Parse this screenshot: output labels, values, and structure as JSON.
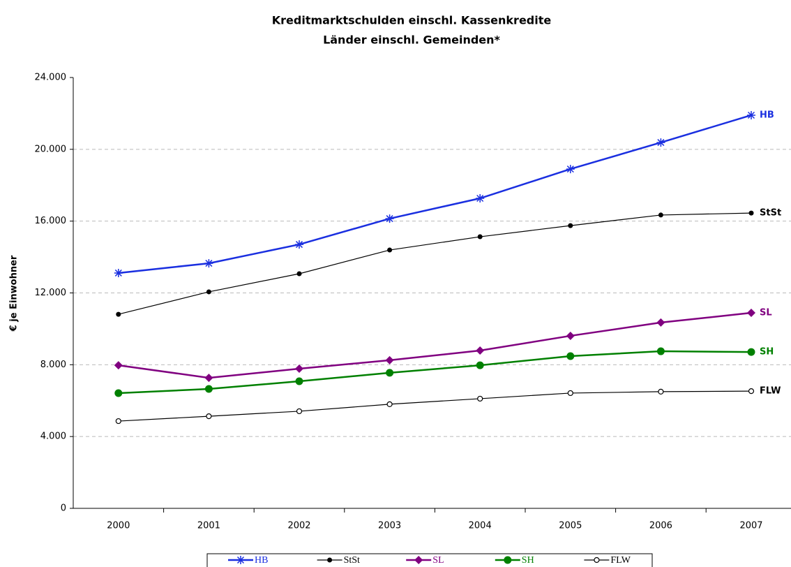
{
  "chart_data": {
    "type": "line",
    "title": "Kreditmarktschulden einschl. Kassenkredite",
    "subtitle": "Länder einschl. Gemeinden*",
    "y_label": "€ je Einwohner",
    "categories": [
      "2000",
      "2001",
      "2002",
      "2003",
      "2004",
      "2005",
      "2006",
      "2007"
    ],
    "series": [
      {
        "name": "HB",
        "color": "#1a2fe0",
        "marker": "star",
        "values": [
          13110,
          13650,
          14700,
          16140,
          17270,
          18900,
          20380,
          21900
        ]
      },
      {
        "name": "StSt",
        "color": "#000000",
        "marker": "dot",
        "values": [
          10810,
          12060,
          13070,
          14390,
          15130,
          15750,
          16340,
          16450
        ]
      },
      {
        "name": "SL",
        "color": "#800080",
        "marker": "diamond",
        "values": [
          7970,
          7270,
          7780,
          8250,
          8790,
          9610,
          10350,
          10890
        ]
      },
      {
        "name": "SH",
        "color": "#008000",
        "marker": "circle",
        "values": [
          6420,
          6650,
          7080,
          7550,
          7970,
          8480,
          8750,
          8710
        ]
      },
      {
        "name": "FLW",
        "color": "#000000",
        "marker": "open-circle",
        "values": [
          4860,
          5130,
          5410,
          5800,
          6110,
          6420,
          6500,
          6530
        ]
      }
    ],
    "ylim": [
      0,
      24000
    ],
    "yticks": [
      0,
      {
        "value": 4000,
        "label": "4.000"
      },
      {
        "value": 8000,
        "label": "8.000"
      },
      {
        "value": 12000,
        "label": "12.000"
      },
      {
        "value": 16000,
        "label": "16.000"
      },
      {
        "value": 20000,
        "label": "20.000"
      },
      {
        "value": 24000,
        "label": "24.000"
      }
    ],
    "grid": true,
    "legend": "bottom"
  }
}
